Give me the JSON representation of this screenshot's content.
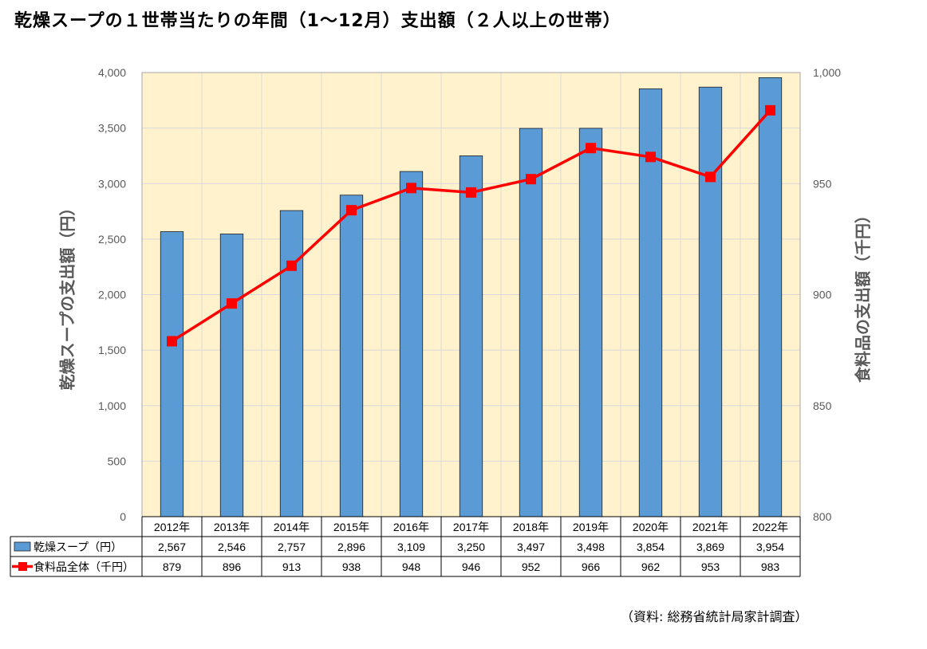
{
  "title": "乾燥スープの１世帯当たりの年間（1～12月）支出額（２人以上の世帯）",
  "source": "（資料: 総務省統計局家計調査）",
  "chart_data": {
    "type": "bar",
    "categories": [
      "2012年",
      "2013年",
      "2014年",
      "2015年",
      "2016年",
      "2017年",
      "2018年",
      "2019年",
      "2020年",
      "2021年",
      "2022年"
    ],
    "series": [
      {
        "name": "乾燥スープ（円）",
        "kind": "bar",
        "axis": "left",
        "color": "#5b9bd5",
        "values": [
          2567,
          2546,
          2757,
          2896,
          3109,
          3250,
          3497,
          3498,
          3854,
          3869,
          3954
        ],
        "display": [
          "2,567",
          "2,546",
          "2,757",
          "2,896",
          "3,109",
          "3,250",
          "3,497",
          "3,498",
          "3,854",
          "3,869",
          "3,954"
        ]
      },
      {
        "name": "食料品全体（千円）",
        "kind": "line",
        "axis": "right",
        "color": "#ff0000",
        "values": [
          879,
          896,
          913,
          938,
          948,
          946,
          952,
          966,
          962,
          953,
          983
        ],
        "display": [
          "879",
          "896",
          "913",
          "938",
          "948",
          "946",
          "952",
          "966",
          "962",
          "953",
          "983"
        ]
      }
    ],
    "ylabel": "乾燥スープの支出額（円）",
    "y2label": "食料品の支出額（千円）",
    "ylim": [
      0,
      4000
    ],
    "y2lim": [
      800,
      1000
    ],
    "yticks": [
      "0",
      "500",
      "1,000",
      "1,500",
      "2,000",
      "2,500",
      "3,000",
      "3,500",
      "4,000"
    ],
    "y2ticks": [
      "800",
      "850",
      "900",
      "950",
      "1,000"
    ],
    "plot_background": "#fff2cc",
    "grid": true,
    "legend": "data-table"
  }
}
